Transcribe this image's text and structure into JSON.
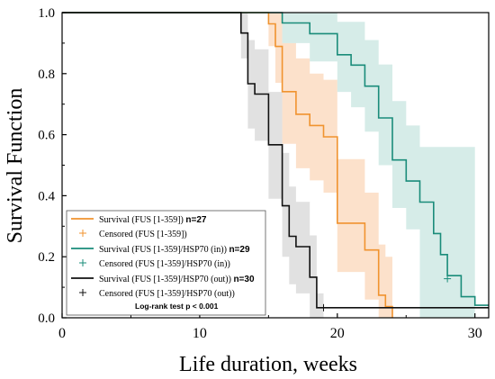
{
  "chart_data": {
    "type": "line",
    "xlabel": "Life duration, weeks",
    "ylabel": "Survival Function",
    "xlim": [
      0,
      31
    ],
    "ylim": [
      0,
      1.0
    ],
    "x_ticks": [
      0,
      10,
      20,
      30
    ],
    "x_tick_labels": [
      "0",
      "10",
      "20",
      "30"
    ],
    "y_ticks": [
      0,
      0.2,
      0.4,
      0.6,
      0.8,
      1.0
    ],
    "y_tick_labels": [
      "0.0",
      "0.2",
      "0.4",
      "0.6",
      "0.8",
      "1.0"
    ],
    "grid": false,
    "legend_position": "bottom-left",
    "annotation": "Log-rank test p < 0.001",
    "series": [
      {
        "key": "fus",
        "name": "Survival (FUS [1-359])",
        "n_label": "n=27",
        "color": "#F0932F",
        "band_color": "#F9C9A0",
        "censored_name": "Censored  (FUS [1-359])",
        "steps": [
          [
            0,
            1.0
          ],
          [
            15,
            0.963
          ],
          [
            15.5,
            0.889
          ],
          [
            16,
            0.741
          ],
          [
            17,
            0.667
          ],
          [
            18,
            0.63
          ],
          [
            19,
            0.593
          ],
          [
            20,
            0.31
          ],
          [
            22,
            0.222
          ],
          [
            23,
            0.074
          ],
          [
            23.5,
            0.037
          ],
          [
            24,
            0.0
          ]
        ],
        "ci": [
          [
            0,
            1.0,
            1.0
          ],
          [
            15,
            0.89,
            1.0
          ],
          [
            15.5,
            0.77,
            1.0
          ],
          [
            16,
            0.57,
            0.9
          ],
          [
            17,
            0.49,
            0.85
          ],
          [
            18,
            0.45,
            0.8
          ],
          [
            19,
            0.41,
            0.78
          ],
          [
            20,
            0.15,
            0.52
          ],
          [
            22,
            0.06,
            0.41
          ],
          [
            23,
            0.0,
            0.24
          ],
          [
            23.5,
            0.0,
            0.2
          ],
          [
            24,
            0.0,
            0.0
          ]
        ],
        "censored": []
      },
      {
        "key": "in",
        "name": "Survival (FUS [1-359]/HSP70 (in))",
        "n_label": "n=29",
        "color": "#1A8C7A",
        "band_color": "#B5DCD6",
        "censored_name": "Censored (FUS [1-359]/HSP70 (in))",
        "steps": [
          [
            0,
            1.0
          ],
          [
            16,
            0.966
          ],
          [
            18,
            0.931
          ],
          [
            20,
            0.862
          ],
          [
            21,
            0.828
          ],
          [
            22,
            0.759
          ],
          [
            23,
            0.655
          ],
          [
            24,
            0.517
          ],
          [
            25,
            0.448
          ],
          [
            26,
            0.379
          ],
          [
            27,
            0.276
          ],
          [
            27.5,
            0.207
          ],
          [
            28,
            0.138
          ],
          [
            29,
            0.069
          ],
          [
            30,
            0.041
          ]
        ],
        "ci": [
          [
            0,
            1.0,
            1.0
          ],
          [
            16,
            0.9,
            1.0
          ],
          [
            18,
            0.84,
            1.0
          ],
          [
            20,
            0.74,
            0.97
          ],
          [
            21,
            0.69,
            0.97
          ],
          [
            22,
            0.61,
            0.91
          ],
          [
            23,
            0.5,
            0.83
          ],
          [
            24,
            0.36,
            0.71
          ],
          [
            25,
            0.29,
            0.63
          ],
          [
            26,
            0.0,
            0.56
          ],
          [
            30,
            0.0,
            0.23
          ]
        ],
        "censored": [
          [
            28,
            0.128
          ]
        ]
      },
      {
        "key": "out",
        "name": "Survival (FUS [1-359]/HSP70 (out))",
        "n_label": "n=30",
        "color": "#111111",
        "band_color": "#C9C9C9",
        "censored_name": "Censored (FUS [1-359]/HSP70 (out))",
        "steps": [
          [
            0,
            1.0
          ],
          [
            13,
            0.933
          ],
          [
            13.5,
            0.767
          ],
          [
            14,
            0.733
          ],
          [
            15,
            0.567
          ],
          [
            16,
            0.367
          ],
          [
            16.5,
            0.267
          ],
          [
            17,
            0.233
          ],
          [
            18,
            0.133
          ],
          [
            18.5,
            0.033
          ]
        ],
        "ci": [
          [
            0,
            1.0,
            1.0
          ],
          [
            13,
            0.85,
            1.0
          ],
          [
            13.5,
            0.62,
            0.91
          ],
          [
            14,
            0.58,
            0.88
          ],
          [
            15,
            0.39,
            0.74
          ],
          [
            16,
            0.2,
            0.54
          ],
          [
            16.5,
            0.11,
            0.43
          ],
          [
            17,
            0.08,
            0.38
          ],
          [
            18,
            0.0,
            0.27
          ],
          [
            18.5,
            0.0,
            0.08
          ],
          [
            19,
            0.0,
            0.0
          ]
        ],
        "censored": [
          [
            19,
            0.033
          ]
        ]
      }
    ]
  }
}
